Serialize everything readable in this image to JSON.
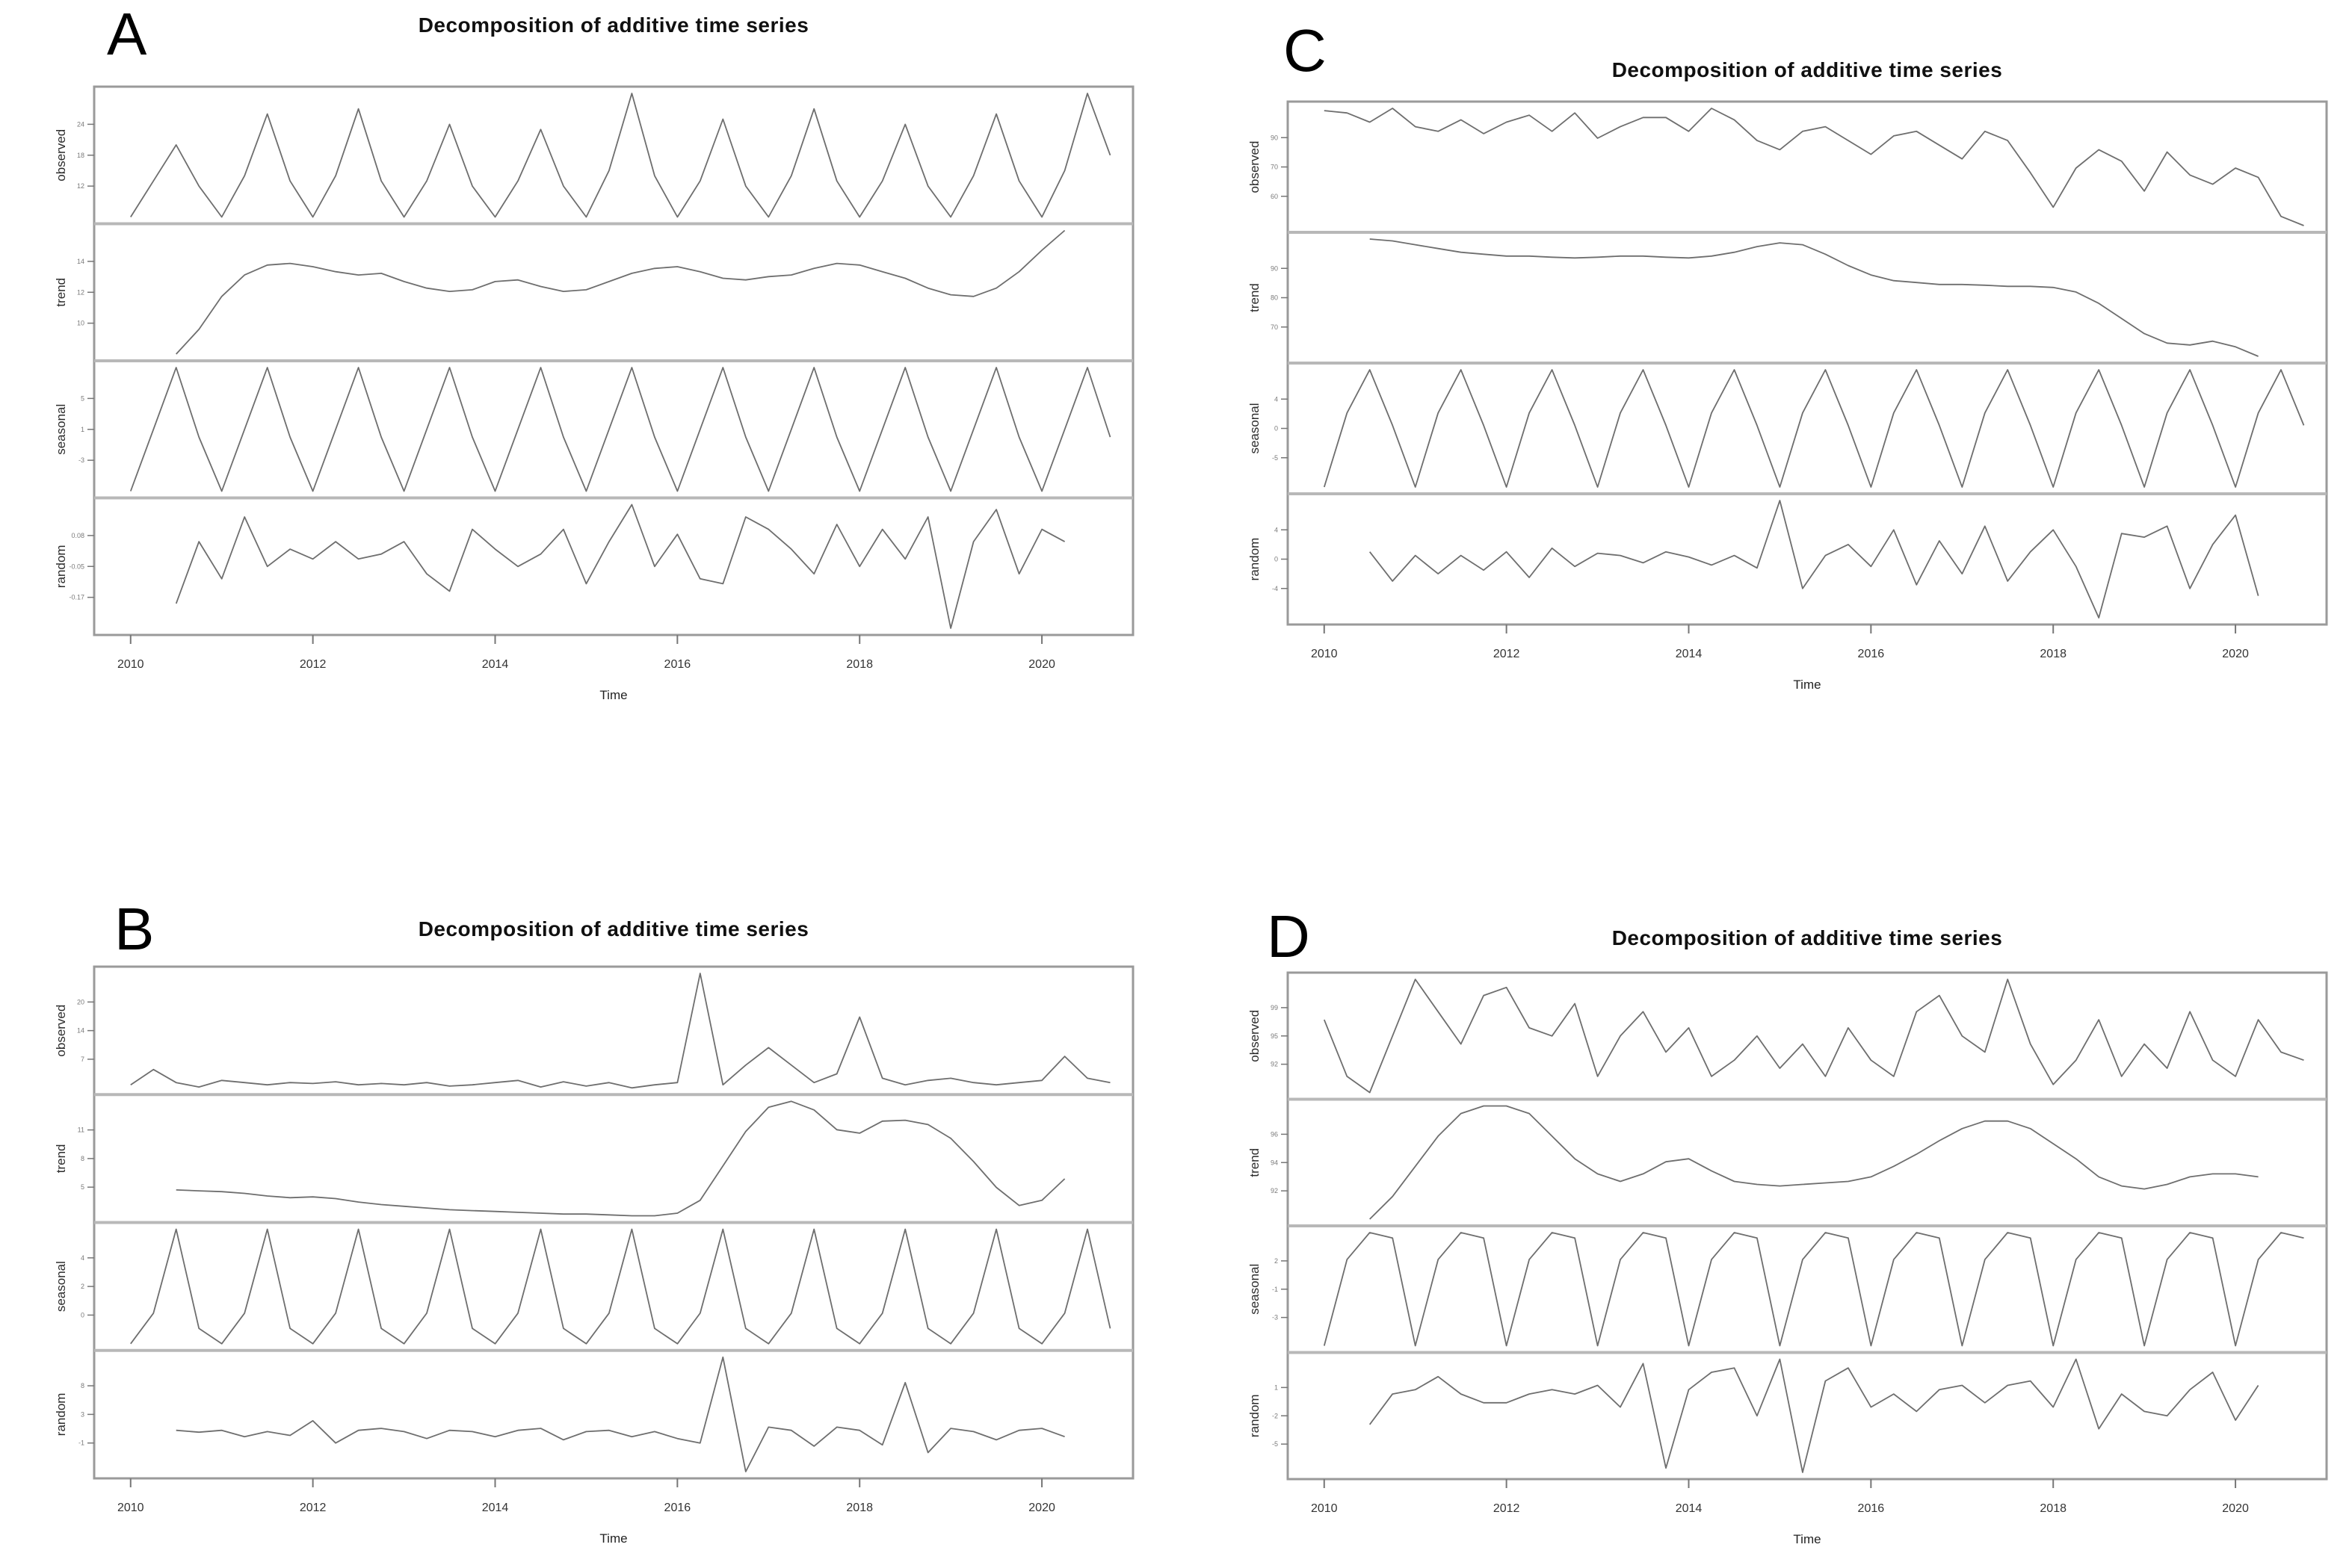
{
  "page": {
    "background": "#ffffff",
    "line_color": "#6e6e6e",
    "frame_color": "#9a9a9a",
    "separator_color": "#b8b8b8"
  },
  "shared": {
    "title": "Decomposition of additive time series",
    "xlabel": "Time",
    "x_tick_labels": [
      "2010",
      "2012",
      "2014",
      "2016",
      "2018",
      "2020"
    ],
    "row_labels": [
      "observed",
      "trend",
      "seasonal",
      "random"
    ]
  },
  "figures": [
    {
      "label": "A",
      "title": "Decomposition of additive time series"
    },
    {
      "label": "C",
      "title": "Decomposition of additive time series"
    },
    {
      "label": "B",
      "title": "Decomposition of additive time series"
    },
    {
      "label": "D",
      "title": "Decomposition of additive time series"
    }
  ],
  "chart_data": [
    {
      "type": "line",
      "panel": "A",
      "title": "Decomposition of additive time series",
      "xlabel": "Time",
      "x_ticks": [
        2010,
        2012,
        2014,
        2016,
        2018,
        2020
      ],
      "xlim": [
        2009.6,
        2021.0
      ],
      "grid": false,
      "legend": "none",
      "panel_rows": [
        "observed",
        "trend",
        "seasonal",
        "random"
      ],
      "series": [
        {
          "name": "observed",
          "x_start": 2010.0,
          "x_step": 0.25,
          "values": [
            6,
            13,
            20,
            12,
            6,
            14,
            26,
            13,
            6,
            14,
            27,
            13,
            6,
            13,
            24,
            12,
            6,
            13,
            23,
            12,
            6,
            15,
            30,
            14,
            6,
            13,
            25,
            12,
            6,
            14,
            27,
            13,
            6,
            13,
            24,
            12,
            6,
            14,
            26,
            13,
            6,
            15,
            30,
            18
          ]
        },
        {
          "name": "trend",
          "x_start": 2010.5,
          "x_step": 0.25,
          "values": [
            8.0,
            9.5,
            11.5,
            12.8,
            13.4,
            13.5,
            13.3,
            13.0,
            12.8,
            12.9,
            12.4,
            12.0,
            11.8,
            11.9,
            12.4,
            12.5,
            12.1,
            11.8,
            11.9,
            12.4,
            12.9,
            13.2,
            13.3,
            13.0,
            12.6,
            12.5,
            12.7,
            12.8,
            13.2,
            13.5,
            13.4,
            13.0,
            12.6,
            12.0,
            11.6,
            11.5,
            12.0,
            13.0,
            14.3,
            15.5
          ]
        },
        {
          "name": "seasonal",
          "x_start": 2010.0,
          "x_step": 0.25,
          "values": [
            -7,
            1,
            9,
            0,
            -7,
            1,
            9,
            0,
            -7,
            1,
            9,
            0,
            -7,
            1,
            9,
            0,
            -7,
            1,
            9,
            0,
            -7,
            1,
            9,
            0,
            -7,
            1,
            9,
            0,
            -7,
            1,
            9,
            0,
            -7,
            1,
            9,
            0,
            -7,
            1,
            9,
            0,
            -7,
            1,
            9,
            0
          ]
        },
        {
          "name": "random",
          "x_start": 2010.5,
          "x_step": 0.25,
          "values": [
            -0.2,
            0.05,
            -0.1,
            0.15,
            -0.05,
            0.02,
            -0.02,
            0.05,
            -0.02,
            0.0,
            0.05,
            -0.08,
            -0.15,
            0.1,
            0.02,
            -0.05,
            0.0,
            0.1,
            -0.12,
            0.05,
            0.2,
            -0.05,
            0.08,
            -0.1,
            -0.12,
            0.15,
            0.1,
            0.02,
            -0.08,
            0.12,
            -0.05,
            0.1,
            -0.02,
            0.15,
            -0.3,
            0.05,
            0.18,
            -0.08,
            0.1,
            0.05
          ]
        }
      ]
    },
    {
      "type": "line",
      "panel": "C",
      "title": "Decomposition of additive time series",
      "xlabel": "Time",
      "x_ticks": [
        2010,
        2012,
        2014,
        2016,
        2018,
        2020
      ],
      "xlim": [
        2009.6,
        2021.0
      ],
      "grid": false,
      "legend": "none",
      "panel_rows": [
        "observed",
        "trend",
        "seasonal",
        "random"
      ],
      "series": [
        {
          "name": "observed",
          "x_start": 2010.0,
          "x_step": 0.25,
          "values": [
            98,
            97,
            93,
            99,
            91,
            89,
            94,
            88,
            93,
            96,
            89,
            97,
            86,
            91,
            95,
            95,
            89,
            99,
            94,
            85,
            81,
            89,
            91,
            85,
            79,
            87,
            89,
            83,
            77,
            89,
            85,
            71,
            56,
            73,
            81,
            76,
            63,
            80,
            70,
            66,
            73,
            69,
            52,
            48
          ]
        },
        {
          "name": "trend",
          "x_start": 2010.5,
          "x_step": 0.25,
          "values": [
            93,
            92.5,
            91.5,
            90.5,
            89.5,
            89,
            88.5,
            88.5,
            88.2,
            88,
            88.2,
            88.5,
            88.5,
            88.2,
            88,
            88.5,
            89.5,
            91,
            92,
            91.5,
            89,
            86,
            83.5,
            82,
            81.5,
            81,
            81,
            80.8,
            80.5,
            80.5,
            80.2,
            79,
            76,
            72,
            68,
            65.5,
            65,
            66,
            64.5,
            62
          ]
        },
        {
          "name": "seasonal",
          "x_start": 2010.0,
          "x_step": 0.25,
          "values": [
            -10,
            2,
            9,
            0,
            -10,
            2,
            9,
            0,
            -10,
            2,
            9,
            0,
            -10,
            2,
            9,
            0,
            -10,
            2,
            9,
            0,
            -10,
            2,
            9,
            0,
            -10,
            2,
            9,
            0,
            -10,
            2,
            9,
            0,
            -10,
            2,
            9,
            0,
            -10,
            2,
            9,
            0,
            -10,
            2,
            9,
            0
          ]
        },
        {
          "name": "random",
          "x_start": 2010.5,
          "x_step": 0.25,
          "values": [
            1,
            -3,
            0.5,
            -2,
            0.5,
            -1.5,
            1,
            -2.5,
            1.5,
            -1,
            0.8,
            0.5,
            -0.5,
            1,
            0.3,
            -0.8,
            0.5,
            -1.2,
            8,
            -4,
            0.5,
            2,
            -1,
            4,
            -3.5,
            2.5,
            -2,
            4.5,
            -3,
            1,
            4,
            -1,
            -8,
            3.5,
            3,
            4.5,
            -4,
            2,
            6,
            -5
          ]
        }
      ]
    },
    {
      "type": "line",
      "panel": "B",
      "title": "Decomposition of additive time series",
      "xlabel": "Time",
      "x_ticks": [
        2010,
        2012,
        2014,
        2016,
        2018,
        2020
      ],
      "xlim": [
        2009.6,
        2021.0
      ],
      "grid": false,
      "legend": "none",
      "panel_rows": [
        "observed",
        "trend",
        "seasonal",
        "random"
      ],
      "series": [
        {
          "name": "observed",
          "x_start": 2010.0,
          "x_step": 0.25,
          "values": [
            1.5,
            5,
            2,
            1,
            2.5,
            2,
            1.5,
            2,
            1.8,
            2.2,
            1.5,
            1.8,
            1.5,
            2,
            1.2,
            1.5,
            2,
            2.5,
            1,
            2.2,
            1.2,
            2,
            0.8,
            1.5,
            2,
            27,
            1.5,
            6,
            10,
            6,
            2,
            4,
            17,
            3,
            1.5,
            2.5,
            3,
            2,
            1.5,
            2,
            2.5,
            8,
            3,
            2
          ]
        },
        {
          "name": "trend",
          "x_start": 2010.5,
          "x_step": 0.25,
          "values": [
            4.2,
            4.1,
            4.0,
            3.8,
            3.5,
            3.3,
            3.4,
            3.2,
            2.8,
            2.5,
            2.3,
            2.1,
            1.9,
            1.8,
            1.7,
            1.6,
            1.5,
            1.4,
            1.4,
            1.3,
            1.2,
            1.2,
            1.5,
            3.0,
            7,
            11,
            13.8,
            14.5,
            13.5,
            11.2,
            10.8,
            12.2,
            12.3,
            11.8,
            10.2,
            7.5,
            4.5,
            2.4,
            3.0,
            5.5
          ]
        },
        {
          "name": "seasonal",
          "x_start": 2010.0,
          "x_step": 0.25,
          "values": [
            -2,
            0,
            5.5,
            -1,
            -2,
            0,
            5.5,
            -1,
            -2,
            0,
            5.5,
            -1,
            -2,
            0,
            5.5,
            -1,
            -2,
            0,
            5.5,
            -1,
            -2,
            0,
            5.5,
            -1,
            -2,
            0,
            5.5,
            -1,
            -2,
            0,
            5.5,
            -1,
            -2,
            0,
            5.5,
            -1,
            -2,
            0,
            5.5,
            -1,
            -2,
            0,
            5.5,
            -1
          ]
        },
        {
          "name": "random",
          "x_start": 2010.5,
          "x_step": 0.25,
          "values": [
            0.5,
            0.2,
            0.5,
            -0.5,
            0.3,
            -0.3,
            2,
            -1.5,
            0.5,
            0.8,
            0.3,
            -0.8,
            0.5,
            0.3,
            -0.5,
            0.5,
            0.8,
            -1,
            0.3,
            0.5,
            -0.5,
            0.3,
            -0.8,
            -1.5,
            12,
            -6,
            1,
            0.5,
            -2,
            1,
            0.5,
            -1.8,
            8,
            -3,
            0.8,
            0.3,
            -1,
            0.5,
            0.8,
            -0.5
          ]
        }
      ]
    },
    {
      "type": "line",
      "panel": "D",
      "title": "Decomposition of additive time series",
      "xlabel": "Time",
      "x_ticks": [
        2010,
        2012,
        2014,
        2016,
        2018,
        2020
      ],
      "xlim": [
        2009.6,
        2021.0
      ],
      "grid": false,
      "legend": "none",
      "panel_rows": [
        "observed",
        "trend",
        "seasonal",
        "random"
      ],
      "series": [
        {
          "name": "observed",
          "x_start": 2010.0,
          "x_step": 0.25,
          "values": [
            97,
            90,
            88,
            95,
            102,
            98,
            94,
            100,
            101,
            96,
            95,
            99,
            90,
            95,
            98,
            93,
            96,
            90,
            92,
            95,
            91,
            94,
            90,
            96,
            92,
            90,
            98,
            100,
            95,
            93,
            102,
            94,
            89,
            92,
            97,
            90,
            94,
            91,
            98,
            92,
            90,
            97,
            93,
            92
          ]
        },
        {
          "name": "trend",
          "x_start": 2010.5,
          "x_step": 0.25,
          "values": [
            90,
            91.5,
            93.5,
            95.5,
            97,
            97.5,
            97.5,
            97,
            95.5,
            94,
            93,
            92.5,
            93,
            93.8,
            94,
            93.2,
            92.5,
            92.3,
            92.2,
            92.3,
            92.4,
            92.5,
            92.8,
            93.5,
            94.3,
            95.2,
            96,
            96.5,
            96.5,
            96,
            95,
            94,
            92.8,
            92.2,
            92,
            92.3,
            92.8,
            93,
            93,
            92.8
          ]
        },
        {
          "name": "seasonal",
          "x_start": 2010.0,
          "x_step": 0.25,
          "values": [
            -6,
            2,
            4.5,
            4,
            -6,
            2,
            4.5,
            4,
            -6,
            2,
            4.5,
            4,
            -6,
            2,
            4.5,
            4,
            -6,
            2,
            4.5,
            4,
            -6,
            2,
            4.5,
            4,
            -6,
            2,
            4.5,
            4,
            -6,
            2,
            4.5,
            4,
            -6,
            2,
            4.5,
            4,
            -6,
            2,
            4.5,
            4,
            -6,
            2,
            4.5,
            4
          ]
        },
        {
          "name": "random",
          "x_start": 2010.5,
          "x_step": 0.25,
          "values": [
            -3,
            0.5,
            1,
            2.5,
            0.5,
            -0.5,
            -0.5,
            0.5,
            1,
            0.5,
            1.5,
            -1,
            4,
            -8,
            1,
            3,
            3.5,
            -2,
            4.5,
            -8.5,
            2,
            3.5,
            -1,
            0.5,
            -1.5,
            1,
            1.5,
            -0.5,
            1.5,
            2,
            -1,
            4.5,
            -3.5,
            0.5,
            -1.5,
            -2,
            1,
            3,
            -2.5,
            1.5
          ]
        }
      ]
    }
  ]
}
